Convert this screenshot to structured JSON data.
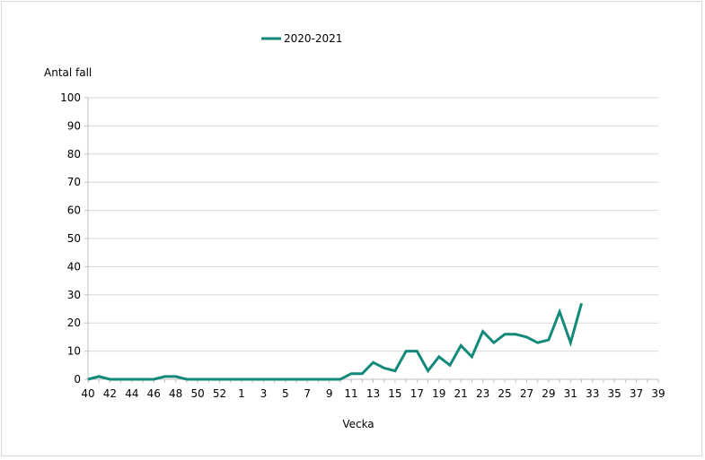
{
  "chart_data": {
    "type": "line",
    "ylabel": "Antal fall",
    "xlabel": "Vecka",
    "ylim": [
      0,
      100
    ],
    "yticks": [
      0,
      10,
      20,
      30,
      40,
      50,
      60,
      70,
      80,
      90,
      100
    ],
    "grid": "horizontal",
    "legend_position": "top",
    "categories": [
      "40",
      "41",
      "42",
      "43",
      "44",
      "45",
      "46",
      "47",
      "48",
      "49",
      "50",
      "51",
      "52",
      "53",
      "1",
      "2",
      "3",
      "4",
      "5",
      "6",
      "7",
      "8",
      "9",
      "10",
      "11",
      "12",
      "13",
      "14",
      "15",
      "16",
      "17",
      "18",
      "19",
      "20",
      "21",
      "22",
      "23",
      "24",
      "25",
      "26",
      "27",
      "28",
      "29",
      "30",
      "31",
      "32",
      "33",
      "34",
      "35",
      "36",
      "37",
      "38",
      "39"
    ],
    "visible_tick_labels": [
      "40",
      "42",
      "44",
      "46",
      "48",
      "50",
      "52",
      "1",
      "3",
      "5",
      "7",
      "9",
      "11",
      "13",
      "15",
      "17",
      "19",
      "21",
      "23",
      "25",
      "27",
      "29",
      "31",
      "33",
      "35",
      "37",
      "39"
    ],
    "series": [
      {
        "name": "2020-2021",
        "color": "#13897a",
        "values": [
          0,
          1,
          0,
          0,
          0,
          0,
          0,
          1,
          1,
          0,
          0,
          0,
          0,
          0,
          0,
          0,
          0,
          0,
          0,
          0,
          0,
          0,
          0,
          0,
          2,
          2,
          6,
          4,
          3,
          10,
          10,
          3,
          8,
          5,
          12,
          8,
          17,
          13,
          16,
          16,
          15,
          13,
          14,
          24,
          13,
          27,
          null,
          null,
          null,
          null,
          null,
          null,
          null
        ]
      }
    ]
  }
}
